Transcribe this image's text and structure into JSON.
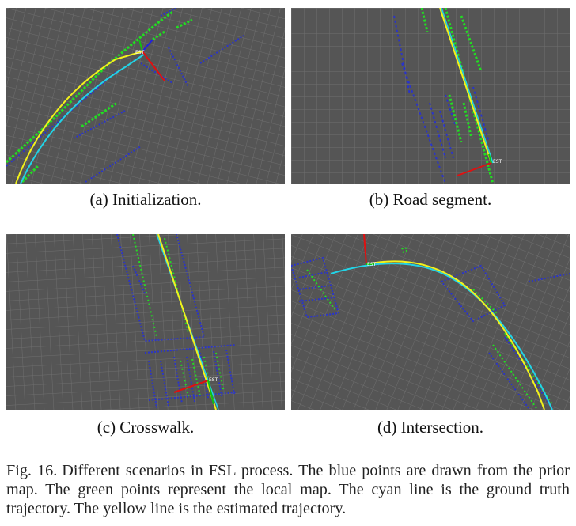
{
  "panels": [
    {
      "id": "a",
      "caption": "(a) Initialization.",
      "marker": "EST"
    },
    {
      "id": "b",
      "caption": "(b) Road segment.",
      "marker": "EST"
    },
    {
      "id": "c",
      "caption": "(c) Crosswalk.",
      "marker": "EST"
    },
    {
      "id": "d",
      "caption": "(d) Intersection.",
      "marker": "EST"
    }
  ],
  "figure_caption": {
    "label": "Fig. 16.",
    "text": "Different scenarios in FSL process. The blue points are drawn from the prior map. The green points represent the local map. The cyan line is the ground truth trajectory. The yellow line is the estimated trajectory."
  },
  "colors": {
    "background": "#555555",
    "grid": "#6e6e6e",
    "prior_map": "#2a34c8",
    "local_map": "#22dd22",
    "ground_truth": "#22d3e6",
    "estimated": "#f2f21a",
    "axis_x": "#e01010",
    "axis_y": "#2020e0",
    "axis_z": "#10c010"
  }
}
